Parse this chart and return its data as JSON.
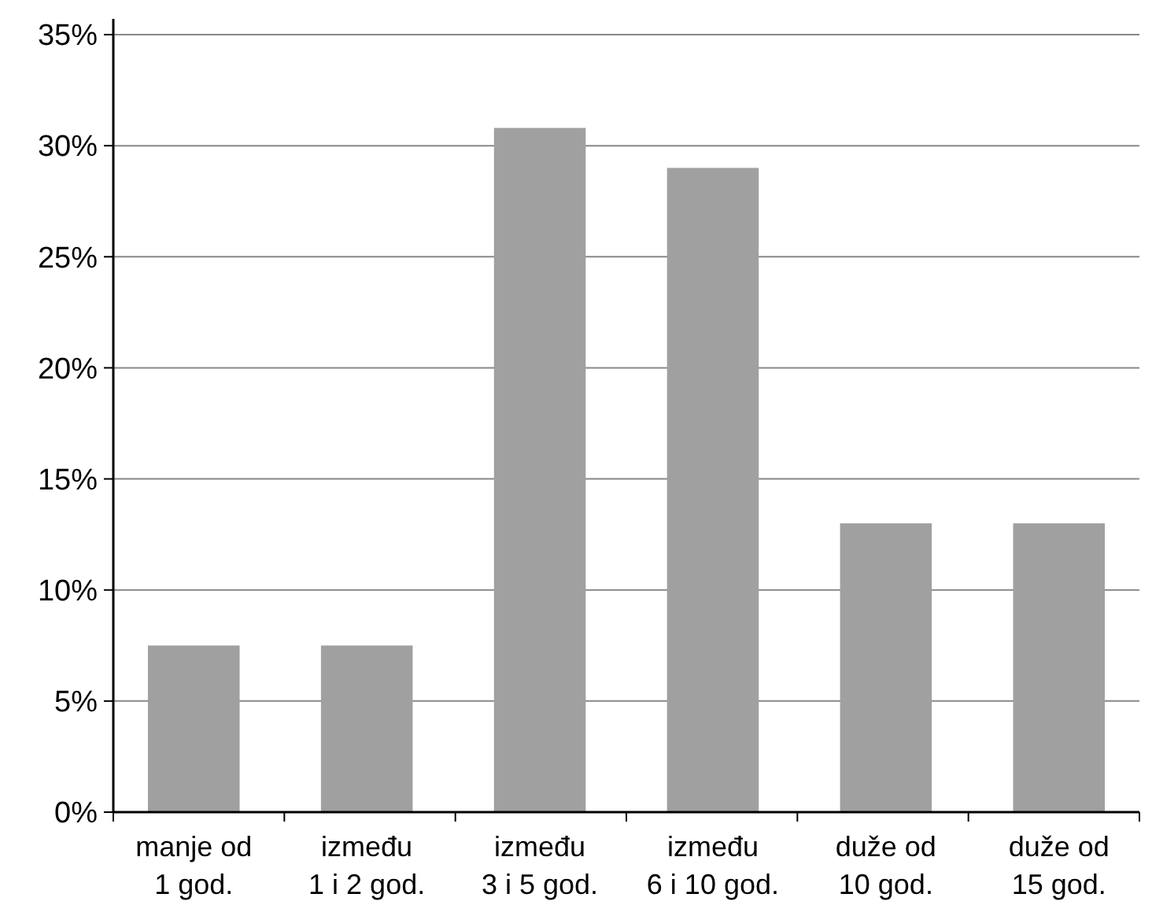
{
  "chart_data": {
    "type": "bar",
    "categories": [
      "manje od\n1 god.",
      "između\n1 i 2 god.",
      "između\n3 i 5 god.",
      "između\n6 i 10 god.",
      "duže od\n10 god.",
      "duže od\n15 god."
    ],
    "values": [
      7.5,
      7.5,
      30.8,
      29,
      13,
      13
    ],
    "color": "#a0a0a0",
    "ylim": [
      0,
      35
    ],
    "yticks": [
      {
        "value": 0,
        "label": "0%"
      },
      {
        "value": 5,
        "label": "5%"
      },
      {
        "value": 10,
        "label": "10%"
      },
      {
        "value": 15,
        "label": "15%"
      },
      {
        "value": 20,
        "label": "20%"
      },
      {
        "value": 25,
        "label": "25%"
      },
      {
        "value": 30,
        "label": "30%"
      },
      {
        "value": 35,
        "label": "35%"
      }
    ],
    "grid": "y"
  }
}
